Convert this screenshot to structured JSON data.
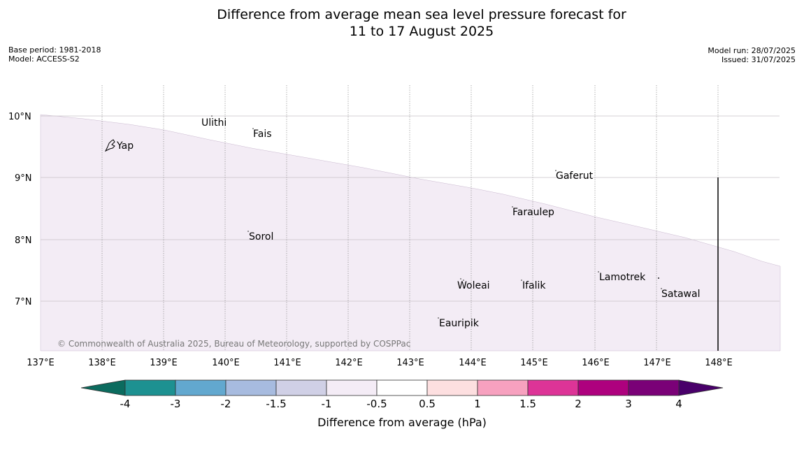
{
  "title": {
    "line1": "Difference from average mean sea level pressure forecast for",
    "line2": "11 to 17 August 2025"
  },
  "meta_left": {
    "base_period": "Base period: 1981-2018",
    "model": "Model: ACCESS-S2"
  },
  "meta_right": {
    "model_run": "Model run: 28/07/2025",
    "issued": "Issued: 31/07/2025"
  },
  "map": {
    "lon_labels": [
      "137°E",
      "138°E",
      "139°E",
      "140°E",
      "141°E",
      "142°E",
      "143°E",
      "144°E",
      "145°E",
      "146°E",
      "147°E",
      "148°E"
    ],
    "lat_labels": [
      "10°N",
      "9°N",
      "8°N",
      "7°N"
    ],
    "islands": [
      "Ulithi",
      "Yap",
      "Fais",
      "Gaferut",
      "Faraulep",
      "Sorol",
      "Woleai",
      "Ifalik",
      "Lamotrek",
      "Satawal",
      "Eauripik"
    ],
    "copyright": "© Commonwealth of Australia 2025, Bureau of Meteorology, supported by COSPPac",
    "shaded_region_class": "-1 to -0.5",
    "colors": {
      "shade_fill": "#f3ecf5",
      "grid_line": "#c8c0c8",
      "meridian": "#888888"
    }
  },
  "colorbar": {
    "tick_labels": [
      "-4",
      "-3",
      "-2",
      "-1.5",
      "-1",
      "-0.5",
      "0.5",
      "1",
      "1.5",
      "2",
      "3",
      "4"
    ],
    "label": "Difference from average (hPa)",
    "colors": [
      "#0b6b5e",
      "#1d9191",
      "#62a8cf",
      "#a7bbdf",
      "#d0d0e6",
      "#f4ecf6",
      "#ffffff",
      "#fddfe0",
      "#f7a1bf",
      "#dd3497",
      "#ae017e",
      "#7a0177",
      "#49006a"
    ]
  }
}
